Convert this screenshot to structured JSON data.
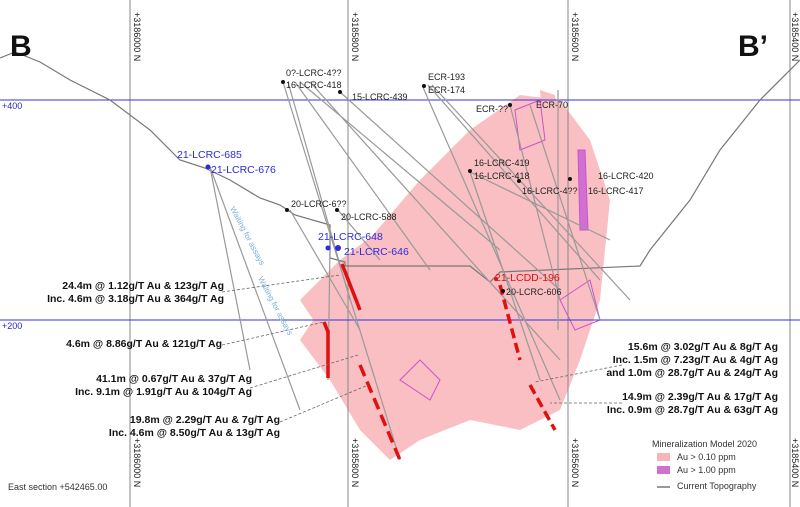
{
  "section": {
    "left_label": "B",
    "right_label": "B’",
    "footer": "East section +542465.00"
  },
  "grid": {
    "northings": [
      "+3186000 N",
      "+3185800 N",
      "+3185600 N",
      "+3185400 N"
    ],
    "elevations": [
      "+400",
      "+200"
    ]
  },
  "holes": {
    "black": [
      "0?-LCRC-4??",
      "16-LCRC-418",
      "15-LCRC-439",
      "ECR-193",
      "ECR-174",
      "ECR-??",
      "ECR-70",
      "16-LCRC-419",
      "16-LCRC-418",
      "16-LCRC-4??",
      "16-LCRC-417",
      "16-LCRC-420",
      "20-LCRC-6??",
      "20-LCRC-588",
      "20-LCRC-606"
    ],
    "blue": [
      "21-LCRC-685",
      "21-LCRC-676",
      "21-LCRC-648",
      "21-LCRC-646"
    ],
    "red": [
      "21-LCDD-196"
    ]
  },
  "waiting": [
    "Waiting for assays",
    "Waiting for assays"
  ],
  "intercepts": [
    [
      "24.4m @ 1.12g/T Au & 123g/T Ag",
      "Inc. 4.6m @ 3.18g/T Au & 364g/T Ag"
    ],
    [
      "4.6m @ 8.86g/T Au & 121g/T Ag"
    ],
    [
      "41.1m @ 0.67g/T Au & 37g/T Ag",
      "Inc. 9.1m @ 1.91g/T Au & 104g/T Ag"
    ],
    [
      "19.8m @ 2.29g/T Au & 7g/T Ag",
      "Inc. 4.6m @ 8.50g/T Au & 13g/T Ag"
    ],
    [
      "15.6m @ 3.02g/T Au & 8g/T Ag",
      "Inc. 1.5m @ 7.23g/T Au & 4g/T Ag",
      "and 1.0m @ 28.7g/T Au & 24g/T Ag"
    ],
    [
      "14.9m @ 2.39g/T Au & 17g/T Ag",
      "Inc. 0.9m @ 28.7g/T Au & 63g/T Ag"
    ]
  ],
  "legend": {
    "title": "Mineralization Model 2020",
    "items": [
      {
        "label": "Au > 0.10 ppm",
        "color": "#f9b4b8"
      },
      {
        "label": "Au > 1.00 ppm",
        "color": "#d070d0"
      },
      {
        "label": "Current Topography",
        "color": "#777777"
      }
    ]
  },
  "colors": {
    "grid_line": "#3333dd",
    "intercept": "#e01010",
    "label_blue": "#2a2ae0"
  }
}
